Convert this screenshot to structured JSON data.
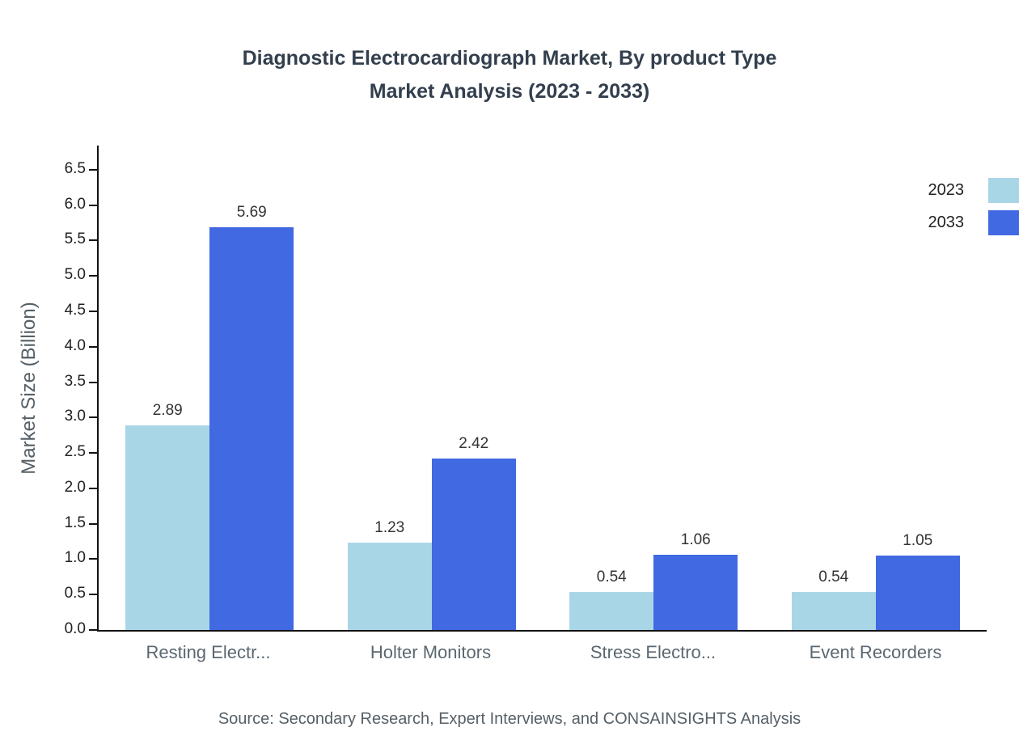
{
  "title": {
    "line1": "Diagnostic Electrocardiograph Market, By product Type",
    "line2": "Market Analysis (2023 - 2033)"
  },
  "chart_data": {
    "type": "bar",
    "title": "Diagnostic Electrocardiograph Market, By product Type Market Analysis (2023 - 2033)",
    "categories": [
      "Resting Electr...",
      "Holter Monitors",
      "Stress Electro...",
      "Event Recorders"
    ],
    "series": [
      {
        "name": "2023",
        "color": "#a9d6e7",
        "values": [
          2.89,
          1.23,
          0.54,
          0.54
        ]
      },
      {
        "name": "2033",
        "color": "#4169e1",
        "values": [
          5.69,
          2.42,
          1.06,
          1.05
        ]
      }
    ],
    "xlabel": "",
    "ylabel": "Market Size (Billion)",
    "ylim": [
      0,
      6.5
    ],
    "yticks": [
      0.0,
      0.5,
      1.0,
      1.5,
      2.0,
      2.5,
      3.0,
      3.5,
      4.0,
      4.5,
      5.0,
      5.5,
      6.0,
      6.5
    ],
    "grid": false,
    "legend_position": "top-right"
  },
  "source": "Source: Secondary Research, Expert Interviews, and CONSAINSIGHTS Analysis"
}
